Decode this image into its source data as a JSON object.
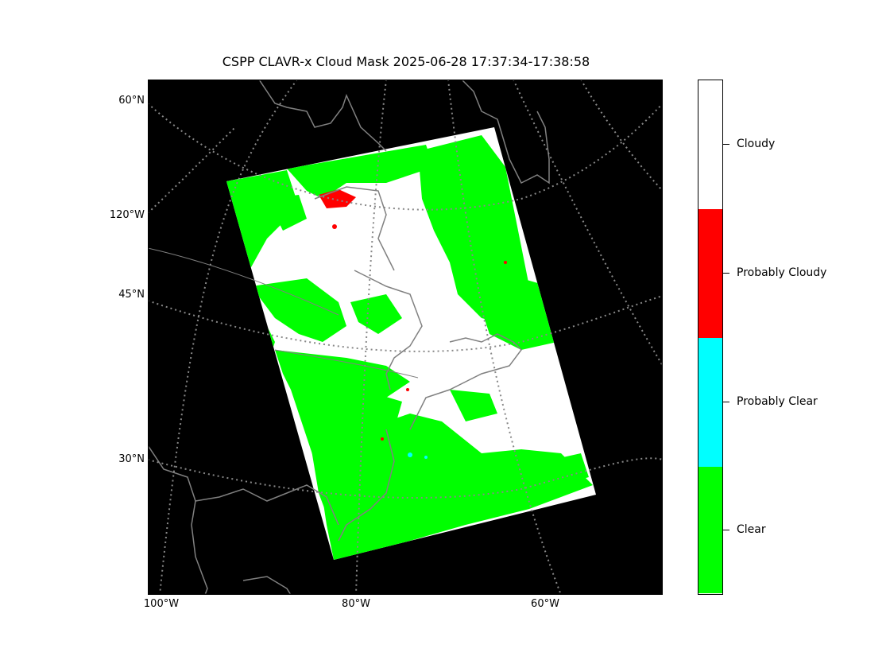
{
  "title": "CSPP CLAVR-x Cloud Mask 2025-06-28 17:37:34-17:38:58",
  "map": {
    "background": "#000000",
    "gridline_color": "#888888",
    "coastline_color": "#808080",
    "lat_labels": [
      "60°N",
      "120°W",
      "45°N",
      "30°N"
    ],
    "lon_labels": [
      "100°W",
      "80°W",
      "60°W"
    ]
  },
  "legend": {
    "categories": [
      {
        "label": "Cloudy",
        "color": "#ffffff"
      },
      {
        "label": "Probably Cloudy",
        "color": "#ff0000"
      },
      {
        "label": "Probably Clear",
        "color": "#00ffff"
      },
      {
        "label": "Clear",
        "color": "#00ff00"
      }
    ]
  }
}
